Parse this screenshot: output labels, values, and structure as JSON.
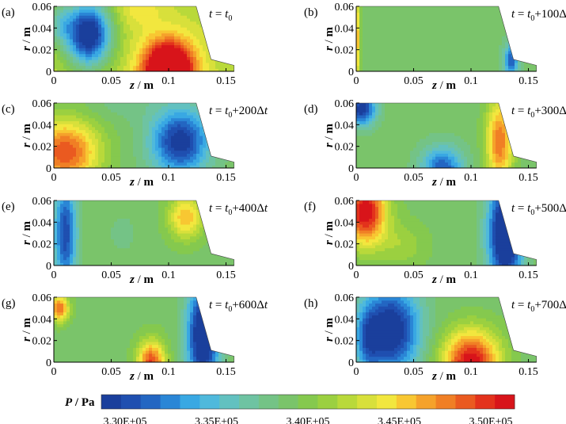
{
  "figure": {
    "colorbar": {
      "label_var": "P",
      "label_unit": " / Pa",
      "ticks": [
        "3.30E+05",
        "3.35E+05",
        "3.40E+05",
        "3.45E+05",
        "3.50E+05"
      ],
      "colors": [
        "#1a3f9c",
        "#1f4fb0",
        "#2366c2",
        "#2a86d6",
        "#39a8e3",
        "#4fb9dc",
        "#62c1c0",
        "#6ec3a2",
        "#74c386",
        "#7ac46a",
        "#85c94e",
        "#9bd040",
        "#b9d93a",
        "#d8e03b",
        "#f2e73e",
        "#f8c732",
        "#f5a22b",
        "#f07f25",
        "#ea5a20",
        "#e3321c",
        "#d8141a"
      ]
    }
  },
  "chart_data": [
    {
      "type": "heatmap",
      "panel": "(a)",
      "time": "t = t",
      "title_parts": {
        "sub": "0",
        "suffix": ""
      },
      "xlabel": "z / m",
      "ylabel": "r / m",
      "xlim": [
        0,
        0.16
      ],
      "ylim": [
        0,
        0.06
      ],
      "x_ticks": [
        "0",
        "0.05",
        "0.1",
        "0.15"
      ],
      "y_ticks": [
        "0",
        "0.02",
        "0.04",
        "0.06"
      ],
      "base_level": 0.6,
      "blobs": [
        {
          "z": 0.03,
          "r": 0.035,
          "sz": 0.02,
          "sr": 0.03,
          "a": -0.65
        },
        {
          "z": 0.1,
          "r": 0.0,
          "sz": 0.022,
          "sr": 0.028,
          "a": 0.75
        },
        {
          "z": 0.005,
          "r": 0.045,
          "sz": 0.012,
          "sr": 0.02,
          "a": -0.2
        },
        {
          "z": 0.075,
          "r": 0.06,
          "sz": 0.02,
          "sr": 0.02,
          "a": 0.1
        }
      ]
    },
    {
      "type": "heatmap",
      "panel": "(b)",
      "time": "t = t",
      "title_parts": {
        "sub": "0",
        "suffix": "+100Δt"
      },
      "xlabel": "z / m",
      "ylabel": "r / m",
      "xlim": [
        0,
        0.16
      ],
      "ylim": [
        0,
        0.06
      ],
      "x_ticks": [
        "0",
        "0.05",
        "0.1",
        "0.15"
      ],
      "y_ticks": [
        "0",
        "0.02",
        "0.04",
        "0.06"
      ],
      "base_level": 0.44,
      "blobs": [
        {
          "z": 0.0,
          "r": 0.03,
          "sz": 0.003,
          "sr": 0.05,
          "a": 0.35
        },
        {
          "z": 0.135,
          "r": 0.01,
          "sz": 0.006,
          "sr": 0.015,
          "a": -0.35
        }
      ]
    },
    {
      "type": "heatmap",
      "panel": "(c)",
      "time": "t = t",
      "title_parts": {
        "sub": "0",
        "suffix": "+200Δt"
      },
      "xlabel": "z / m",
      "ylabel": "r / m",
      "xlim": [
        0,
        0.16
      ],
      "ylim": [
        0,
        0.06
      ],
      "x_ticks": [
        "0",
        "0.05",
        "0.1",
        "0.15"
      ],
      "y_ticks": [
        "0",
        "0.02",
        "0.04",
        "0.06"
      ],
      "base_level": 0.45,
      "blobs": [
        {
          "z": 0.01,
          "r": 0.015,
          "sz": 0.03,
          "sr": 0.03,
          "a": 0.45
        },
        {
          "z": 0.11,
          "r": 0.025,
          "sz": 0.025,
          "sr": 0.03,
          "a": -0.45
        },
        {
          "z": 0.06,
          "r": 0.06,
          "sz": 0.03,
          "sr": 0.015,
          "a": -0.05
        }
      ]
    },
    {
      "type": "heatmap",
      "panel": "(d)",
      "time": "t = t",
      "title_parts": {
        "sub": "0",
        "suffix": "+300Δt"
      },
      "xlabel": "z / m",
      "ylabel": "r / m",
      "xlim": [
        0,
        0.16
      ],
      "ylim": [
        0,
        0.06
      ],
      "x_ticks": [
        "0",
        "0.05",
        "0.1",
        "0.15"
      ],
      "y_ticks": [
        "0",
        "0.02",
        "0.04",
        "0.06"
      ],
      "base_level": 0.45,
      "blobs": [
        {
          "z": 0.005,
          "r": 0.055,
          "sz": 0.012,
          "sr": 0.015,
          "a": -0.45
        },
        {
          "z": 0.075,
          "r": 0.0,
          "sz": 0.018,
          "sr": 0.02,
          "a": -0.35
        },
        {
          "z": 0.125,
          "r": 0.025,
          "sz": 0.012,
          "sr": 0.04,
          "a": 0.4
        }
      ]
    },
    {
      "type": "heatmap",
      "panel": "(e)",
      "time": "t = t",
      "title_parts": {
        "sub": "0",
        "suffix": "+400Δt"
      },
      "xlabel": "z / m",
      "ylabel": "r / m",
      "xlim": [
        0,
        0.16
      ],
      "ylim": [
        0,
        0.06
      ],
      "x_ticks": [
        "0",
        "0.05",
        "0.1",
        "0.15"
      ],
      "y_ticks": [
        "0",
        "0.02",
        "0.04",
        "0.06"
      ],
      "base_level": 0.46,
      "blobs": [
        {
          "z": 0.01,
          "r": 0.03,
          "sz": 0.01,
          "sr": 0.05,
          "a": -0.4
        },
        {
          "z": 0.115,
          "r": 0.045,
          "sz": 0.015,
          "sr": 0.02,
          "a": 0.3
        },
        {
          "z": 0.06,
          "r": 0.03,
          "sz": 0.02,
          "sr": 0.03,
          "a": -0.04
        }
      ]
    },
    {
      "type": "heatmap",
      "panel": "(f)",
      "time": "t = t",
      "title_parts": {
        "sub": "0",
        "suffix": "+500Δt"
      },
      "xlabel": "z / m",
      "ylabel": "r / m",
      "xlim": [
        0,
        0.16
      ],
      "ylim": [
        0,
        0.06
      ],
      "x_ticks": [
        "0",
        "0.05",
        "0.1",
        "0.15"
      ],
      "y_ticks": [
        "0",
        "0.02",
        "0.04",
        "0.06"
      ],
      "base_level": 0.46,
      "blobs": [
        {
          "z": 0.008,
          "r": 0.05,
          "sz": 0.018,
          "sr": 0.03,
          "a": 0.55
        },
        {
          "z": 0.13,
          "r": 0.03,
          "sz": 0.015,
          "sr": 0.05,
          "a": -0.6
        },
        {
          "z": 0.04,
          "r": 0.02,
          "sz": 0.02,
          "sr": 0.02,
          "a": 0.1
        }
      ]
    },
    {
      "type": "heatmap",
      "panel": "(g)",
      "time": "t = t",
      "title_parts": {
        "sub": "0",
        "suffix": "+600Δt"
      },
      "xlabel": "z / m",
      "ylabel": "r / m",
      "xlim": [
        0,
        0.16
      ],
      "ylim": [
        0,
        0.06
      ],
      "x_ticks": [
        "0",
        "0.05",
        "0.1",
        "0.15"
      ],
      "y_ticks": [
        "0",
        "0.02",
        "0.04",
        "0.06"
      ],
      "base_level": 0.46,
      "blobs": [
        {
          "z": 0.005,
          "r": 0.05,
          "sz": 0.008,
          "sr": 0.012,
          "a": 0.4
        },
        {
          "z": 0.085,
          "r": 0.0,
          "sz": 0.012,
          "sr": 0.02,
          "a": 0.45
        },
        {
          "z": 0.13,
          "r": 0.025,
          "sz": 0.014,
          "sr": 0.05,
          "a": -0.55
        }
      ]
    },
    {
      "type": "heatmap",
      "panel": "(h)",
      "time": "t = t",
      "title_parts": {
        "sub": "0",
        "suffix": "+700Δt"
      },
      "xlabel": "z / m",
      "ylabel": "r / m",
      "xlim": [
        0,
        0.16
      ],
      "ylim": [
        0,
        0.06
      ],
      "x_ticks": [
        "0",
        "0.05",
        "0.1",
        "0.15"
      ],
      "y_ticks": [
        "0",
        "0.02",
        "0.04",
        "0.06"
      ],
      "base_level": 0.45,
      "blobs": [
        {
          "z": 0.03,
          "r": 0.03,
          "sz": 0.025,
          "sr": 0.04,
          "a": -0.5
        },
        {
          "z": 0.1,
          "r": 0.0,
          "sz": 0.025,
          "sr": 0.03,
          "a": 0.55
        },
        {
          "z": 0.01,
          "r": 0.02,
          "sz": 0.01,
          "sr": 0.03,
          "a": -0.2
        }
      ]
    }
  ]
}
